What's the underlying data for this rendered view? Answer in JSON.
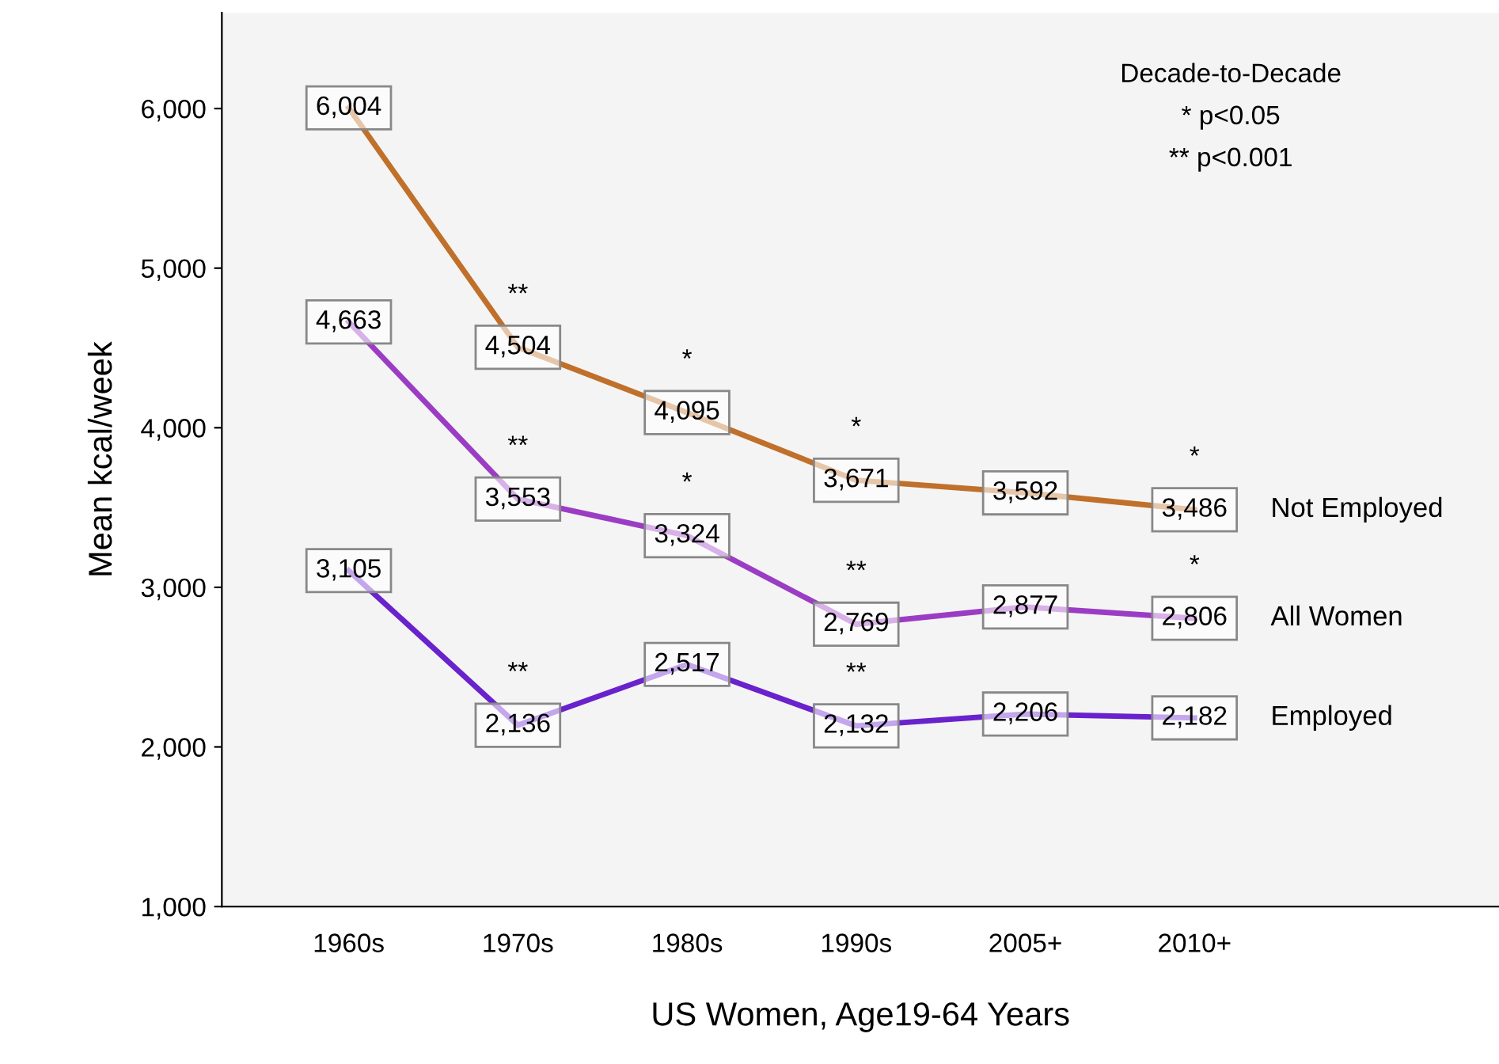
{
  "chart_data": {
    "type": "line",
    "xlabel": "US Women, Age19-64 Years",
    "ylabel": "Mean kcal/week",
    "categories": [
      "1960s",
      "1970s",
      "1980s",
      "1990s",
      "2005+",
      "2010+"
    ],
    "series": [
      {
        "name": "Not Employed",
        "color": "#c0702a",
        "values": [
          6004,
          4504,
          4095,
          3671,
          3592,
          3486
        ],
        "value_labels": [
          "6,004",
          "4,504",
          "4,095",
          "3,671",
          "3,592",
          "3,486"
        ]
      },
      {
        "name": "All Women",
        "color": "#9b3dc4",
        "values": [
          4663,
          3553,
          3324,
          2769,
          2877,
          2806
        ],
        "value_labels": [
          "4,663",
          "3,553",
          "3,324",
          "2,769",
          "2,877",
          "2,806"
        ]
      },
      {
        "name": "Employed",
        "color": "#6a22cc",
        "values": [
          3105,
          2136,
          2517,
          2132,
          2206,
          2182
        ],
        "value_labels": [
          "3,105",
          "2,136",
          "2,517",
          "2,132",
          "2,206",
          "2,182"
        ]
      }
    ],
    "ylim": [
      1000,
      6600
    ],
    "yticks": [
      {
        "value": 1000,
        "label": "1,000"
      },
      {
        "value": 2000,
        "label": "2,000"
      },
      {
        "value": 3000,
        "label": "3,000"
      },
      {
        "value": 4000,
        "label": "4,000"
      },
      {
        "value": 5000,
        "label": "5,000"
      },
      {
        "value": 6000,
        "label": "6,000"
      }
    ],
    "grid": false,
    "legend": false,
    "line_style": "solid",
    "annotations": [
      "Decade-to-Decade",
      "* p<0.05",
      "** p<0.001",
      {
        "text": "**",
        "x": "1970s",
        "y": 4504
      },
      {
        "text": "*",
        "x": "1980s",
        "y": 4095
      },
      {
        "text": "*",
        "x": "1990s",
        "y": 3671
      },
      {
        "text": "*",
        "x": "2010+",
        "y": 3486
      },
      {
        "text": "**",
        "x": "1970s",
        "y": 3553
      },
      {
        "text": "*",
        "x": "1980s",
        "y": 3324
      },
      {
        "text": "**",
        "x": "1990s",
        "y": 2769
      },
      {
        "text": "*",
        "x": "2010+",
        "y": 2806
      },
      {
        "text": "**",
        "x": "1970s",
        "y": 2136
      },
      {
        "text": "**",
        "x": "1990s",
        "y": 2132
      }
    ]
  }
}
